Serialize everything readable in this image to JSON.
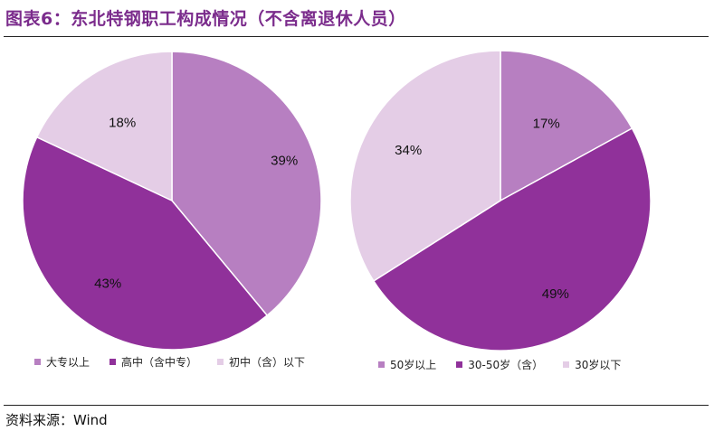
{
  "title": "图表6：东北特钢职工构成情况（不含离退休人员）",
  "source": "资料来源：Wind",
  "chart_data": [
    {
      "type": "pie",
      "title": "",
      "categories": [
        "大专以上",
        "高中（含中专）",
        "初中（含）以下"
      ],
      "values": [
        39,
        43,
        18
      ],
      "labels": [
        "39%",
        "43%",
        "18%"
      ],
      "colors": [
        "#b77fc1",
        "#90319a",
        "#e4cde6"
      ],
      "legend_position": "bottom"
    },
    {
      "type": "pie",
      "title": "",
      "categories": [
        "50岁以上",
        "30-50岁（含）",
        "30岁以下"
      ],
      "values": [
        17,
        49,
        34
      ],
      "labels": [
        "17%",
        "49%",
        "34%"
      ],
      "colors": [
        "#b77fc1",
        "#90319a",
        "#e4cde6"
      ],
      "legend_position": "bottom"
    }
  ]
}
